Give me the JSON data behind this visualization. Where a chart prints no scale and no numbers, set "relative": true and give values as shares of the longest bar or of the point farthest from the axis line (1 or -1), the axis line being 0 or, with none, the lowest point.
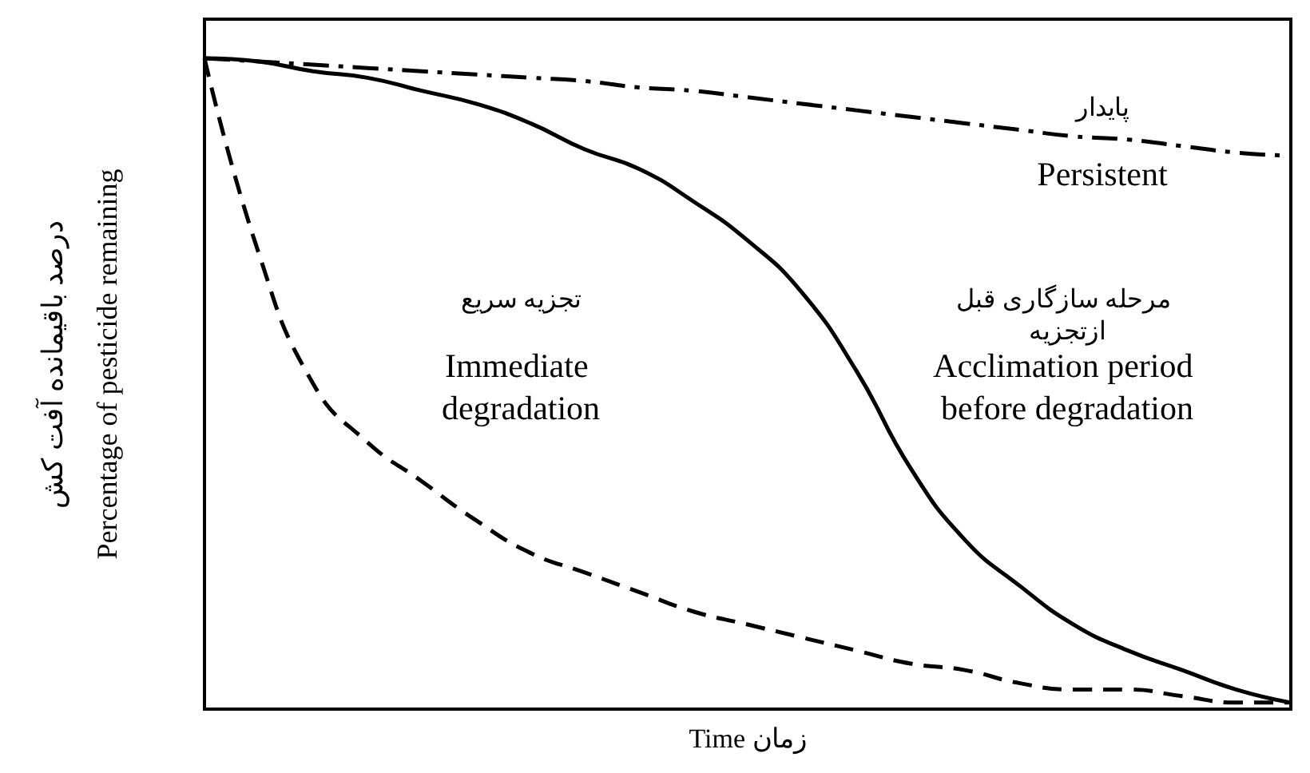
{
  "chart_data": {
    "type": "line",
    "relative": true,
    "xlabel": "Time زمان",
    "ylabel": "درصد باقیمانده آفت کش\nPercentage of pesticide remaining",
    "categories": [
      null,
      null,
      null,
      null,
      null,
      null,
      null,
      null,
      null,
      null,
      null,
      null,
      null,
      null,
      null,
      null,
      null,
      null,
      null,
      null,
      null
    ],
    "series": [
      {
        "color": "#000000",
        "line_style": "dotted",
        "values": [
          1.0,
          0.995,
          0.99,
          0.985,
          0.98,
          0.975,
          0.97,
          0.965,
          0.955,
          0.95,
          0.94,
          0.93,
          0.92,
          0.91,
          0.9,
          0.89,
          0.88,
          0.875,
          0.865,
          0.855,
          0.85
        ]
      },
      {
        "color": "#000000",
        "line_style": "solid",
        "values": [
          1.0,
          0.995,
          0.98,
          0.97,
          0.95,
          0.93,
          0.9,
          0.86,
          0.83,
          0.78,
          0.72,
          0.64,
          0.52,
          0.37,
          0.26,
          0.19,
          0.13,
          0.09,
          0.06,
          0.03,
          0.01
        ]
      },
      {
        "color": "#000000",
        "line_style": "dashed",
        "values": [
          1.0,
          0.7,
          0.5,
          0.41,
          0.35,
          0.29,
          0.24,
          0.21,
          0.18,
          0.15,
          0.13,
          0.11,
          0.09,
          0.07,
          0.06,
          0.04,
          0.03,
          0.03,
          0.02,
          0.01,
          0.01
        ]
      }
    ],
    "annotations": [
      "پایدار",
      "Persistent",
      "تجزیه سریع",
      "Immediate degradation",
      "مرحله سازگاری قبل ازتجزیه",
      "Acclimation period before degradation"
    ],
    "grid": false,
    "marker": "none"
  }
}
